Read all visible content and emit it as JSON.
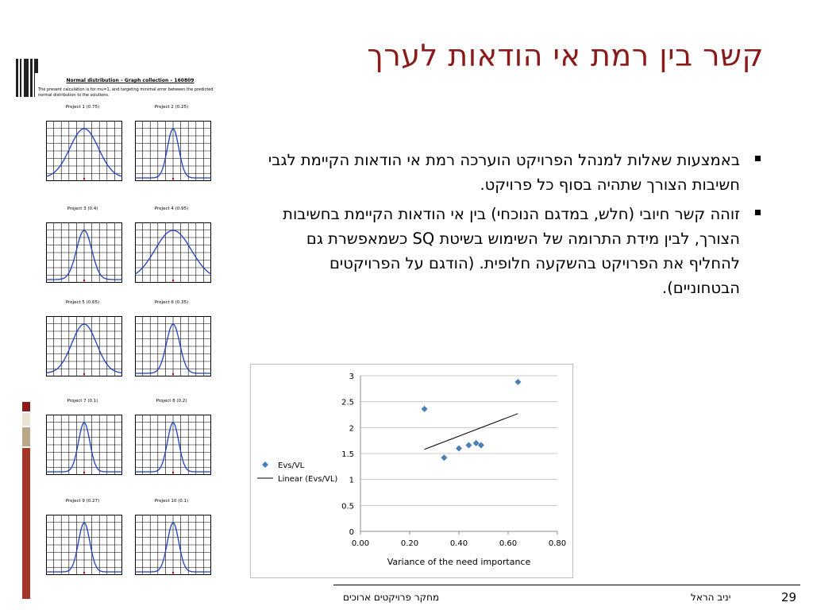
{
  "slide": {
    "title": "קשר בין רמת אי הודאות לערך",
    "bullets": [
      "באמצעות שאלות למנהל הפרויקט הוערכה רמת אי הודאות הקיימת לגבי חשיבות הצורך שתהיה בסוף כל פרויקט.",
      "זוהה קשר חיובי (חלש, במדגם הנוכחי) בין אי הודאות הקיימת בחשיבות הצורך, לבין מידת התרומה של השימוש בשיטת SQ כשמאפשרת גם להחליף את הפרויקט בהשקעה חלופית. (הודגם על הפרויקטים הבטחוניים)."
    ],
    "footer": {
      "course": "מחקר פרויקטים ארוכים",
      "author": "יניב הראל",
      "page": "29"
    }
  },
  "graph_collection": {
    "title": "Normal distribution – Graph collection – 160809",
    "note": "The present calculation is for mu=1, and targeting minimal error between the predicted normal distribution to the solutions.",
    "projects": [
      {
        "label": "Project 1 (0.75)",
        "sigma": 0.75
      },
      {
        "label": "Project 2 (0.25)",
        "sigma": 0.25
      },
      {
        "label": "Project 3 (0.4)",
        "sigma": 0.4
      },
      {
        "label": "Project 4 (0.95)",
        "sigma": 0.95
      },
      {
        "label": "Project 5 (0.65)",
        "sigma": 0.65
      },
      {
        "label": "Project 6 (0.35)",
        "sigma": 0.35
      },
      {
        "label": "Project 7 (0.1)",
        "sigma": 0.1
      },
      {
        "label": "Project 8 (0.2)",
        "sigma": 0.2
      },
      {
        "label": "Project 9 (0.27)",
        "sigma": 0.27
      },
      {
        "label": "Project 10 (0.1)",
        "sigma": 0.1
      }
    ]
  },
  "chart_data": {
    "type": "scatter",
    "xlabel": "Variance of the need importance",
    "ylabel": "",
    "xlim": [
      0,
      0.8
    ],
    "ylim": [
      0,
      3
    ],
    "x_ticks": [
      "0.00",
      "0.20",
      "0.40",
      "0.60",
      "0.80"
    ],
    "y_ticks": [
      "0",
      "0.5",
      "1",
      "1.5",
      "2",
      "2.5",
      "3"
    ],
    "grid": true,
    "legend_position": "left",
    "series": [
      {
        "name": "Evs/VL",
        "marker": "diamond",
        "color": "#4a7ebb",
        "points": [
          {
            "x": 0.26,
            "y": 2.36
          },
          {
            "x": 0.34,
            "y": 1.42
          },
          {
            "x": 0.4,
            "y": 1.6
          },
          {
            "x": 0.44,
            "y": 1.66
          },
          {
            "x": 0.47,
            "y": 1.7
          },
          {
            "x": 0.49,
            "y": 1.66
          },
          {
            "x": 0.64,
            "y": 2.88
          }
        ]
      },
      {
        "name": "Linear (Evs/VL)",
        "type": "line",
        "color": "#000000",
        "points": [
          {
            "x": 0.26,
            "y": 1.58
          },
          {
            "x": 0.64,
            "y": 2.27
          }
        ]
      }
    ]
  }
}
